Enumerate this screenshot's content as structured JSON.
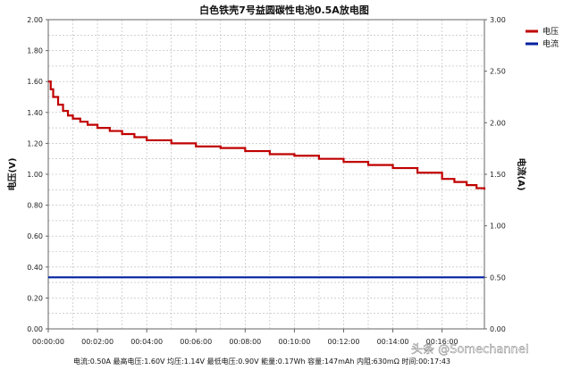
{
  "chart_data": {
    "type": "line",
    "title": "白色铁壳7号益圆碳性电池0.5A放电图",
    "ylabel_left": "电压(V)",
    "ylabel_right": "电流(A)",
    "ylim_left": [
      0,
      2
    ],
    "ylim_right": [
      0,
      3
    ],
    "yticks_left": [
      "0.00",
      "0.20",
      "0.40",
      "0.60",
      "0.80",
      "1.00",
      "1.20",
      "1.40",
      "1.60",
      "1.80",
      "2.00"
    ],
    "yticks_right": [
      "0.00",
      "0.50",
      "1.00",
      "1.50",
      "2.00",
      "2.50",
      "3.00"
    ],
    "x_unit": "minutes",
    "xlim": [
      0,
      17.72
    ],
    "xticks": [
      {
        "value": 0,
        "label": "00:00:00"
      },
      {
        "value": 2,
        "label": "00:02:00"
      },
      {
        "value": 4,
        "label": "00:04:00"
      },
      {
        "value": 6,
        "label": "00:06:00"
      },
      {
        "value": 8,
        "label": "00:08:00"
      },
      {
        "value": 10,
        "label": "00:10:00"
      },
      {
        "value": 12,
        "label": "00:12:00"
      },
      {
        "value": 14,
        "label": "00:14:00"
      },
      {
        "value": 16,
        "label": "00:16:00"
      }
    ],
    "grid": true,
    "legend_position": "top-right, outside plot",
    "series": [
      {
        "name": "电压",
        "axis": "left",
        "color": "#c00000",
        "x": [
          0,
          0.1,
          0.2,
          0.4,
          0.6,
          0.8,
          1.0,
          1.3,
          1.6,
          2.0,
          2.5,
          3.0,
          3.5,
          4.0,
          5.0,
          6.0,
          7.0,
          8.0,
          9.0,
          10.0,
          11.0,
          12.0,
          13.0,
          14.0,
          15.0,
          16.0,
          16.5,
          17.0,
          17.4,
          17.72
        ],
        "y": [
          1.6,
          1.55,
          1.5,
          1.45,
          1.41,
          1.38,
          1.36,
          1.34,
          1.32,
          1.3,
          1.28,
          1.26,
          1.24,
          1.22,
          1.2,
          1.18,
          1.17,
          1.15,
          1.13,
          1.12,
          1.1,
          1.08,
          1.06,
          1.04,
          1.01,
          0.97,
          0.95,
          0.93,
          0.91,
          0.9
        ]
      },
      {
        "name": "电流",
        "axis": "right",
        "color": "#0020a0",
        "x": [
          0,
          17.72
        ],
        "y": [
          0.5,
          0.5
        ]
      }
    ],
    "footer": "电流:0.50A 最高电压:1.60V 均压:1.14V 最低电压:0.90V 能量:0.17Wh 容量:147mAh 内阻:630mΩ 时间:00:17:43"
  },
  "watermark": "头条 @Somechannel"
}
